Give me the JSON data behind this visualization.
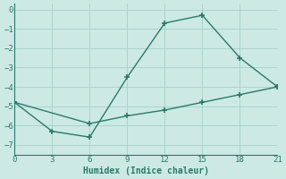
{
  "xlabel": "Humidex (Indice chaleur)",
  "background_color": "#cce9e4",
  "grid_color": "#aad4cc",
  "line_color": "#2a7a6a",
  "xlim": [
    0,
    21
  ],
  "ylim": [
    -7.5,
    0.3
  ],
  "xticks": [
    0,
    3,
    6,
    9,
    12,
    15,
    18,
    21
  ],
  "yticks": [
    0,
    -1,
    -2,
    -3,
    -4,
    -5,
    -6,
    -7
  ],
  "line1_x": [
    0,
    3,
    6,
    9,
    12,
    15,
    18,
    21
  ],
  "line1_y": [
    -4.8,
    -6.3,
    -6.6,
    -3.5,
    -0.7,
    -0.3,
    -2.5,
    -4.0
  ],
  "line2_x": [
    0,
    6,
    9,
    12,
    15,
    18,
    21
  ],
  "line2_y": [
    -4.8,
    -5.9,
    -5.5,
    -5.2,
    -4.8,
    -4.4,
    -4.0
  ],
  "marker": "+",
  "markersize": 5,
  "markeredgewidth": 1.2,
  "linewidth": 1.0,
  "linestyle": "-"
}
